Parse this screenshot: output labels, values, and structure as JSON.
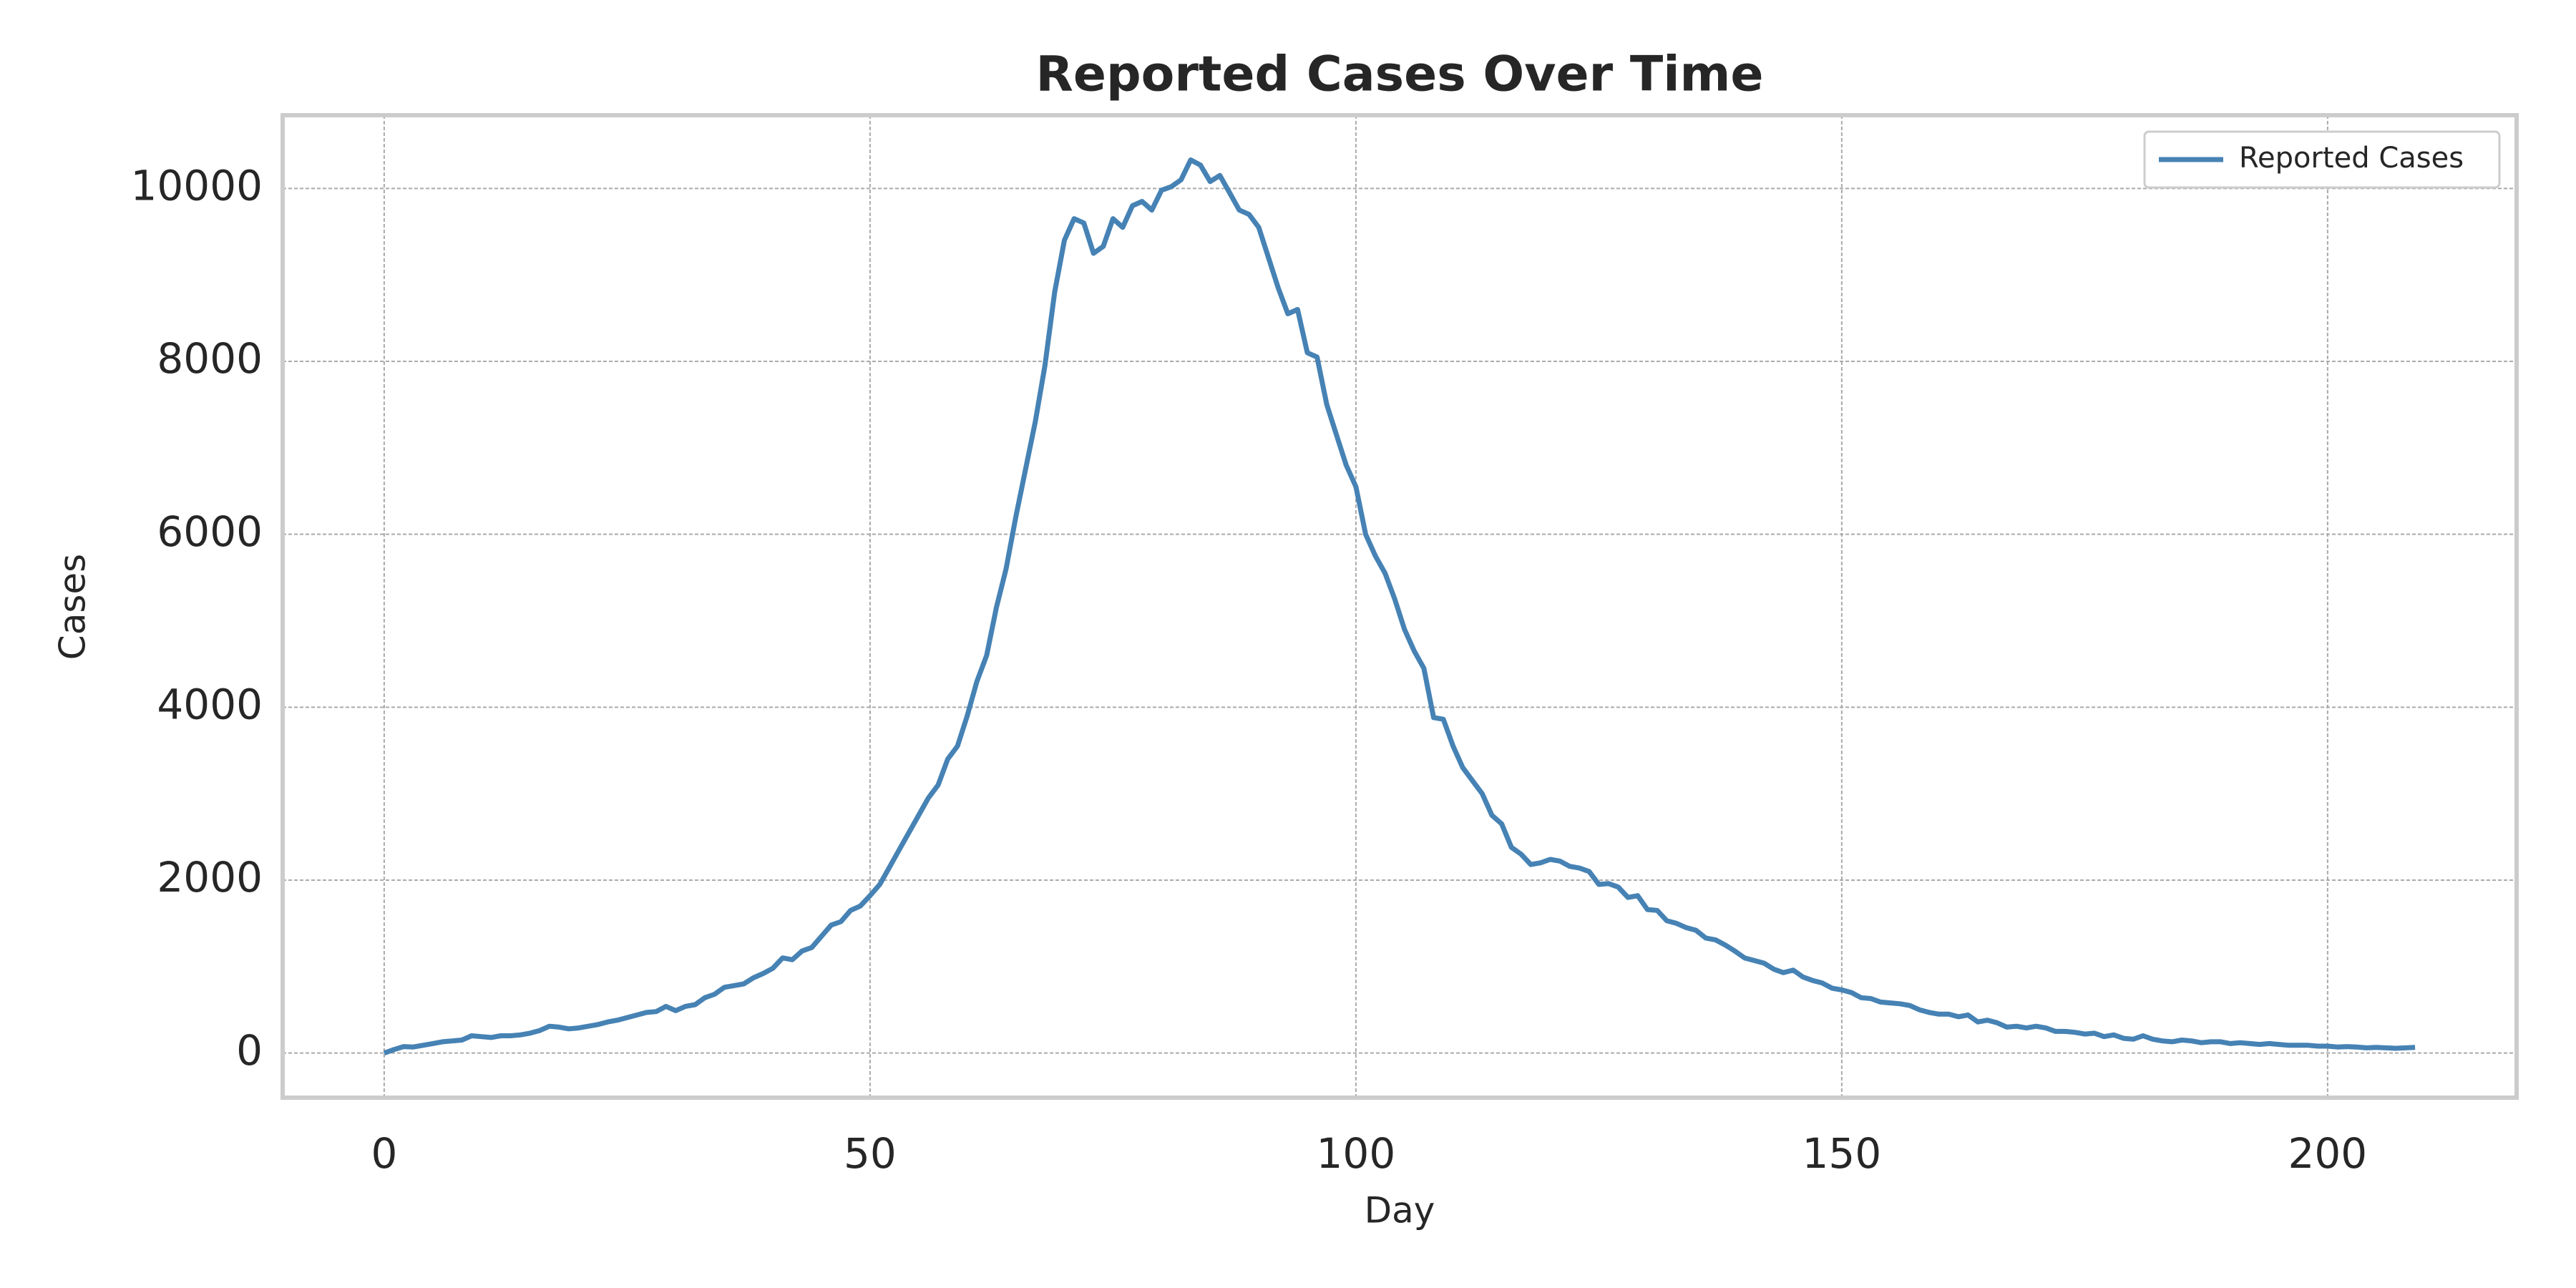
{
  "chart_data": {
    "type": "line",
    "title": "Reported Cases Over Time",
    "xlabel": "Day",
    "ylabel": "Cases",
    "x": [
      0,
      1,
      2,
      3,
      4,
      5,
      6,
      7,
      8,
      9,
      10,
      11,
      12,
      13,
      14,
      15,
      16,
      17,
      18,
      19,
      20,
      21,
      22,
      23,
      24,
      25,
      26,
      27,
      28,
      29,
      30,
      31,
      32,
      33,
      34,
      35,
      36,
      37,
      38,
      39,
      40,
      41,
      42,
      43,
      44,
      45,
      46,
      47,
      48,
      49,
      50,
      51,
      52,
      53,
      54,
      55,
      56,
      57,
      58,
      59,
      60,
      61,
      62,
      63,
      64,
      65,
      66,
      67,
      68,
      69,
      70,
      71,
      72,
      73,
      74,
      75,
      76,
      77,
      78,
      79,
      80,
      81,
      82,
      83,
      84,
      85,
      86,
      87,
      88,
      89,
      90,
      91,
      92,
      93,
      94,
      95,
      96,
      97,
      98,
      99,
      100,
      101,
      102,
      103,
      104,
      105,
      106,
      107,
      108,
      109,
      110,
      111,
      112,
      113,
      114,
      115,
      116,
      117,
      118,
      119,
      120,
      121,
      122,
      123,
      124,
      125,
      126,
      127,
      128,
      129,
      130,
      131,
      132,
      133,
      134,
      135,
      136,
      137,
      138,
      139,
      140,
      141,
      142,
      143,
      144,
      145,
      146,
      147,
      148,
      149,
      150,
      151,
      152,
      153,
      154,
      155,
      156,
      157,
      158,
      159,
      160,
      161,
      162,
      163,
      164,
      165,
      166,
      167,
      168,
      169,
      170,
      171,
      172,
      173,
      174,
      175,
      176,
      177,
      178,
      179,
      180,
      181,
      182,
      183,
      184,
      185,
      186,
      187,
      188,
      189,
      190,
      191,
      192,
      193,
      194,
      195,
      196,
      197,
      198,
      199,
      200,
      201,
      202,
      203,
      204,
      205,
      206,
      207,
      208,
      209
    ],
    "series": [
      {
        "name": "Reported Cases",
        "color": "#4682b4",
        "values": [
          0,
          40,
          75,
          70,
          90,
          110,
          130,
          140,
          150,
          200,
          190,
          180,
          200,
          200,
          210,
          230,
          260,
          310,
          300,
          280,
          290,
          310,
          330,
          360,
          380,
          410,
          440,
          470,
          480,
          540,
          490,
          540,
          560,
          640,
          680,
          760,
          780,
          800,
          870,
          920,
          980,
          1100,
          1080,
          1180,
          1220,
          1350,
          1480,
          1520,
          1650,
          1700,
          1820,
          1950,
          2150,
          2350,
          2550,
          2750,
          2950,
          3100,
          3400,
          3550,
          3900,
          4300,
          4600,
          5150,
          5600,
          6200,
          6750,
          7300,
          7950,
          8800,
          9400,
          9650,
          9600,
          9250,
          9330,
          9650,
          9550,
          9800,
          9850,
          9750,
          9980,
          10020,
          10100,
          10330,
          10270,
          10080,
          10150,
          9950,
          9750,
          9700,
          9550,
          9200,
          8850,
          8550,
          8600,
          8100,
          8050,
          7500,
          7150,
          6800,
          6550,
          6000,
          5750,
          5550,
          5250,
          4900,
          4650,
          4450,
          3880,
          3860,
          3550,
          3300,
          3150,
          3000,
          2750,
          2650,
          2380,
          2300,
          2180,
          2200,
          2240,
          2220,
          2160,
          2140,
          2100,
          1950,
          1960,
          1920,
          1800,
          1820,
          1660,
          1650,
          1530,
          1500,
          1450,
          1420,
          1330,
          1310,
          1250,
          1180,
          1100,
          1070,
          1040,
          970,
          930,
          960,
          880,
          840,
          810,
          750,
          730,
          700,
          640,
          630,
          590,
          580,
          570,
          550,
          500,
          470,
          450,
          450,
          420,
          440,
          360,
          380,
          350,
          300,
          310,
          290,
          310,
          290,
          250,
          250,
          240,
          220,
          230,
          190,
          210,
          170,
          160,
          200,
          160,
          140,
          130,
          150,
          140,
          120,
          130,
          130,
          110,
          120,
          110,
          100,
          110,
          100,
          90,
          90,
          90,
          80,
          80,
          70,
          75,
          70,
          60,
          65,
          60,
          55,
          60,
          65
        ]
      }
    ],
    "xlim": [
      -10.45,
      219.45
    ],
    "ylim": [
      -516,
      10847
    ],
    "xticks": [
      0,
      50,
      100,
      150,
      200
    ],
    "yticks": [
      0,
      2000,
      4000,
      6000,
      8000,
      10000
    ],
    "grid": true,
    "legend": "upper right"
  }
}
